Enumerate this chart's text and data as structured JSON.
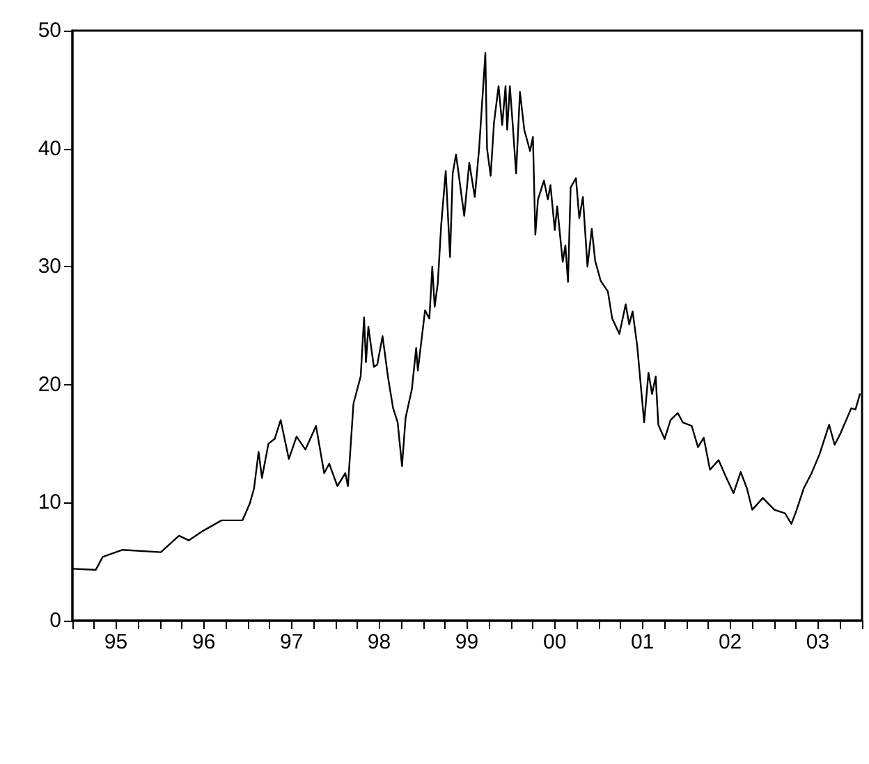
{
  "chart_data": {
    "type": "line",
    "xlim": [
      "1995-01-01",
      "2004-01-01"
    ],
    "ylim": [
      0,
      50
    ],
    "yticks": [
      0,
      10,
      20,
      30,
      40,
      50
    ],
    "grid": false,
    "marker": "none",
    "line_style": "solid",
    "xticks": [
      {
        "value": "1995-01-01",
        "label": null
      },
      {
        "value": "1995-04-01",
        "label": null
      },
      {
        "value": "1995-07-01",
        "label": "95"
      },
      {
        "value": "1995-10-01",
        "label": null
      },
      {
        "value": "1996-01-01",
        "label": null
      },
      {
        "value": "1996-04-01",
        "label": null
      },
      {
        "value": "1996-07-01",
        "label": "96"
      },
      {
        "value": "1996-10-01",
        "label": null
      },
      {
        "value": "1997-01-01",
        "label": null
      },
      {
        "value": "1997-04-01",
        "label": null
      },
      {
        "value": "1997-07-01",
        "label": "97"
      },
      {
        "value": "1997-10-01",
        "label": null
      },
      {
        "value": "1998-01-01",
        "label": null
      },
      {
        "value": "1998-04-01",
        "label": null
      },
      {
        "value": "1998-07-01",
        "label": "98"
      },
      {
        "value": "1998-10-01",
        "label": null
      },
      {
        "value": "1999-01-01",
        "label": null
      },
      {
        "value": "1999-04-01",
        "label": null
      },
      {
        "value": "1999-07-01",
        "label": "99"
      },
      {
        "value": "1999-10-01",
        "label": null
      },
      {
        "value": "2000-01-01",
        "label": null
      },
      {
        "value": "2000-04-01",
        "label": null
      },
      {
        "value": "2000-07-01",
        "label": "00"
      },
      {
        "value": "2000-10-01",
        "label": null
      },
      {
        "value": "2001-01-01",
        "label": null
      },
      {
        "value": "2001-04-01",
        "label": null
      },
      {
        "value": "2001-07-01",
        "label": "01"
      },
      {
        "value": "2001-10-01",
        "label": null
      },
      {
        "value": "2002-01-01",
        "label": null
      },
      {
        "value": "2002-04-01",
        "label": null
      },
      {
        "value": "2002-07-01",
        "label": "02"
      },
      {
        "value": "2002-10-01",
        "label": null
      },
      {
        "value": "2003-01-01",
        "label": null
      },
      {
        "value": "2003-04-01",
        "label": null
      },
      {
        "value": "2003-07-01",
        "label": "03"
      },
      {
        "value": "2003-10-01",
        "label": null
      },
      {
        "value": "2004-01-01",
        "label": null
      }
    ],
    "series": [
      {
        "color": "#000000",
        "x": [
          "1995-01-01",
          "1995-04-08",
          "1995-05-07",
          "1995-07-29",
          "1996-01-04",
          "1996-03-20",
          "1996-04-29",
          "1996-06-27",
          "1996-09-13",
          "1996-12-09",
          "1997-01-08",
          "1997-01-26",
          "1997-02-14",
          "1997-02-28",
          "1997-03-27",
          "1997-04-22",
          "1997-05-17",
          "1997-06-20",
          "1997-07-22",
          "1997-08-28",
          "1997-10-11",
          "1997-11-14",
          "1997-12-05",
          "1998-01-08",
          "1998-02-10",
          "1998-02-21",
          "1998-03-16",
          "1998-04-15",
          "1998-04-29",
          "1998-05-07",
          "1998-05-17",
          "1998-06-09",
          "1998-06-23",
          "1998-07-15",
          "1998-08-07",
          "1998-08-28",
          "1998-09-16",
          "1998-10-04",
          "1998-10-19",
          "1998-11-14",
          "1998-12-02",
          "1998-12-09",
          "1999-01-08",
          "1999-01-26",
          "1999-02-07",
          "1999-02-17",
          "1999-03-02",
          "1999-03-16",
          "1999-04-04",
          "1999-04-22",
          "1999-05-03",
          "1999-05-17",
          "1999-06-20",
          "1999-07-11",
          "1999-08-03",
          "1999-08-21",
          "1999-09-16",
          "1999-09-23",
          "1999-10-08",
          "1999-10-22",
          "1999-11-10",
          "1999-11-25",
          "1999-12-09",
          "1999-12-16",
          "1999-12-27",
          "2000-01-08",
          "2000-01-22",
          "2000-02-07",
          "2000-02-25",
          "2000-03-20",
          "2000-04-01",
          "2000-04-11",
          "2000-04-22",
          "2000-05-17",
          "2000-06-02",
          "2000-06-13",
          "2000-07-01",
          "2000-07-11",
          "2000-08-03",
          "2000-08-14",
          "2000-08-25",
          "2000-09-05",
          "2000-09-27",
          "2000-10-11",
          "2000-10-26",
          "2000-11-14",
          "2000-12-02",
          "2000-12-16",
          "2001-01-08",
          "2001-02-07",
          "2001-02-25",
          "2001-03-27",
          "2001-04-22",
          "2001-05-07",
          "2001-05-21",
          "2001-06-09",
          "2001-07-08",
          "2001-07-26",
          "2001-08-10",
          "2001-08-25",
          "2001-09-05",
          "2001-10-01",
          "2001-10-26",
          "2001-11-25",
          "2001-12-16",
          "2002-01-22",
          "2002-02-17",
          "2002-03-13",
          "2002-04-08",
          "2002-05-14",
          "2002-06-13",
          "2002-07-15",
          "2002-08-14",
          "2002-09-09",
          "2002-10-01",
          "2002-11-14",
          "2003-01-01",
          "2003-02-14",
          "2003-03-13",
          "2003-04-04",
          "2003-05-03",
          "2003-06-05",
          "2003-07-08",
          "2003-08-17",
          "2003-09-09",
          "2003-10-04",
          "2003-11-17",
          "2003-12-05",
          "2003-12-23"
        ],
        "values": [
          4.4,
          4.3,
          5.4,
          6.0,
          5.8,
          7.2,
          6.8,
          7.6,
          8.5,
          8.5,
          9.9,
          11.2,
          14.3,
          12.1,
          15.0,
          15.4,
          17.0,
          13.7,
          15.6,
          14.5,
          16.5,
          12.5,
          13.3,
          11.4,
          12.5,
          11.4,
          18.4,
          20.7,
          25.7,
          21.9,
          24.9,
          21.5,
          21.7,
          24.1,
          20.6,
          18.0,
          16.8,
          13.1,
          17.2,
          19.6,
          23.1,
          21.2,
          26.3,
          25.6,
          30.0,
          26.6,
          28.6,
          33.5,
          38.1,
          30.8,
          37.9,
          39.5,
          34.3,
          38.8,
          35.9,
          40.0,
          48.1,
          40.0,
          37.7,
          42.2,
          45.3,
          42.0,
          45.3,
          41.6,
          45.3,
          42.0,
          37.9,
          44.8,
          41.6,
          39.8,
          41.0,
          32.7,
          35.7,
          37.3,
          35.7,
          36.9,
          33.1,
          35.1,
          30.4,
          31.8,
          28.7,
          36.7,
          37.5,
          34.1,
          35.9,
          30.0,
          33.2,
          30.5,
          28.8,
          27.9,
          25.6,
          24.3,
          26.8,
          25.1,
          26.2,
          23.3,
          16.8,
          21.0,
          19.2,
          20.7,
          16.6,
          15.4,
          17.0,
          17.6,
          16.8,
          16.5,
          14.7,
          15.5,
          12.8,
          13.6,
          12.2,
          10.8,
          12.6,
          11.2,
          9.4,
          10.4,
          9.4,
          9.1,
          8.2,
          9.4,
          11.2,
          12.5,
          14.1,
          16.6,
          14.9,
          15.9,
          18.0,
          17.9,
          19.2
        ]
      }
    ]
  }
}
